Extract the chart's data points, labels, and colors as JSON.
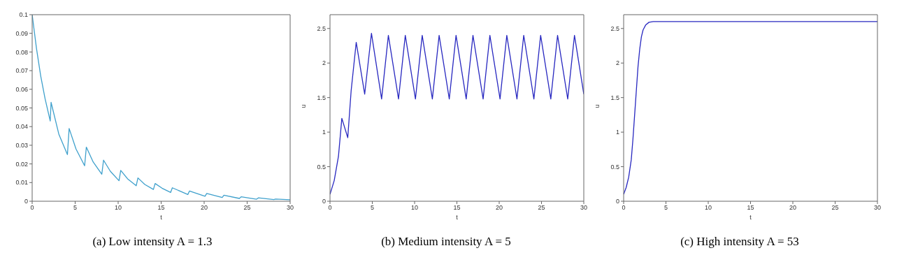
{
  "chart_data": [
    {
      "type": "line",
      "xlabel": "t",
      "annotations": [
        "(a) Low intensity A = 1.3"
      ],
      "xlim": [
        0,
        30
      ],
      "xticks": [
        0,
        5,
        10,
        15,
        20,
        25,
        30
      ],
      "ylim": [
        0,
        0.1
      ],
      "yticks": [
        0,
        0.01,
        0.02,
        0.03,
        0.04,
        0.05,
        0.06,
        0.07,
        0.08,
        0.09,
        0.1
      ],
      "legend": false,
      "marker": "none",
      "line_style": "solid",
      "series": [
        {
          "color": "#3fa0cc",
          "x": [
            0,
            0.5,
            1,
            1.5,
            2.1,
            2.2,
            3.1,
            4.1,
            4.3,
            5.1,
            6.1,
            6.3,
            7.1,
            8.1,
            8.3,
            9.1,
            10.1,
            10.3,
            11.1,
            12.1,
            12.3,
            13.1,
            14.1,
            14.3,
            15.1,
            16.1,
            16.3,
            18.1,
            18.3,
            20.1,
            20.3,
            22.1,
            22.3,
            24.1,
            24.3,
            26.1,
            26.3,
            28.1,
            28.3,
            30
          ],
          "values": [
            0.1,
            0.082,
            0.067,
            0.055,
            0.043,
            0.053,
            0.036,
            0.025,
            0.039,
            0.028,
            0.019,
            0.029,
            0.021,
            0.0145,
            0.022,
            0.016,
            0.011,
            0.0165,
            0.012,
            0.0083,
            0.0125,
            0.009,
            0.0063,
            0.0095,
            0.007,
            0.0047,
            0.0072,
            0.0036,
            0.0055,
            0.0027,
            0.0042,
            0.002,
            0.0032,
            0.0015,
            0.0024,
            0.0011,
            0.0018,
            0.0009,
            0.0012,
            0.0008
          ]
        }
      ]
    },
    {
      "type": "line",
      "xlabel": "t",
      "ylabel": "u",
      "annotations": [
        "(b) Medium intensity A = 5"
      ],
      "xlim": [
        0,
        30
      ],
      "xticks": [
        0,
        5,
        10,
        15,
        20,
        25,
        30
      ],
      "ylim": [
        0,
        2.7
      ],
      "yticks": [
        0,
        0.5,
        1,
        1.5,
        2,
        2.5
      ],
      "legend": false,
      "marker": "none",
      "line_style": "solid",
      "series": [
        {
          "color": "#2828c0",
          "x": [
            0,
            0.5,
            1,
            1.4,
            2.1,
            2.5,
            3.1,
            4.1,
            4.9,
            6.1,
            6.9,
            8.1,
            8.9,
            10.1,
            10.9,
            12.1,
            12.9,
            14.1,
            14.9,
            16.1,
            16.9,
            18.1,
            18.9,
            20.1,
            20.9,
            22.1,
            22.9,
            24.1,
            24.9,
            26.1,
            26.9,
            28.1,
            28.9,
            30
          ],
          "values": [
            0.1,
            0.3,
            0.65,
            1.2,
            0.92,
            1.6,
            2.3,
            1.55,
            2.43,
            1.48,
            2.4,
            1.48,
            2.4,
            1.48,
            2.4,
            1.48,
            2.4,
            1.48,
            2.4,
            1.48,
            2.4,
            1.48,
            2.4,
            1.48,
            2.4,
            1.48,
            2.4,
            1.48,
            2.4,
            1.48,
            2.4,
            1.48,
            2.4,
            1.55
          ]
        }
      ]
    },
    {
      "type": "line",
      "xlabel": "t",
      "ylabel": "u",
      "annotations": [
        "(c) High intensity A = 53"
      ],
      "xlim": [
        0,
        30
      ],
      "xticks": [
        0,
        5,
        10,
        15,
        20,
        25,
        30
      ],
      "ylim": [
        0,
        2.7
      ],
      "yticks": [
        0,
        0.5,
        1,
        1.5,
        2,
        2.5
      ],
      "legend": false,
      "marker": "none",
      "line_style": "solid",
      "series": [
        {
          "color": "#2828c0",
          "x": [
            0,
            0.3,
            0.6,
            0.9,
            1.1,
            1.3,
            1.5,
            1.7,
            1.9,
            2.1,
            2.3,
            2.6,
            3.0,
            3.5,
            5,
            30
          ],
          "values": [
            0.1,
            0.2,
            0.35,
            0.6,
            0.9,
            1.25,
            1.6,
            1.95,
            2.2,
            2.38,
            2.48,
            2.55,
            2.59,
            2.6,
            2.6,
            2.6
          ]
        }
      ]
    }
  ]
}
